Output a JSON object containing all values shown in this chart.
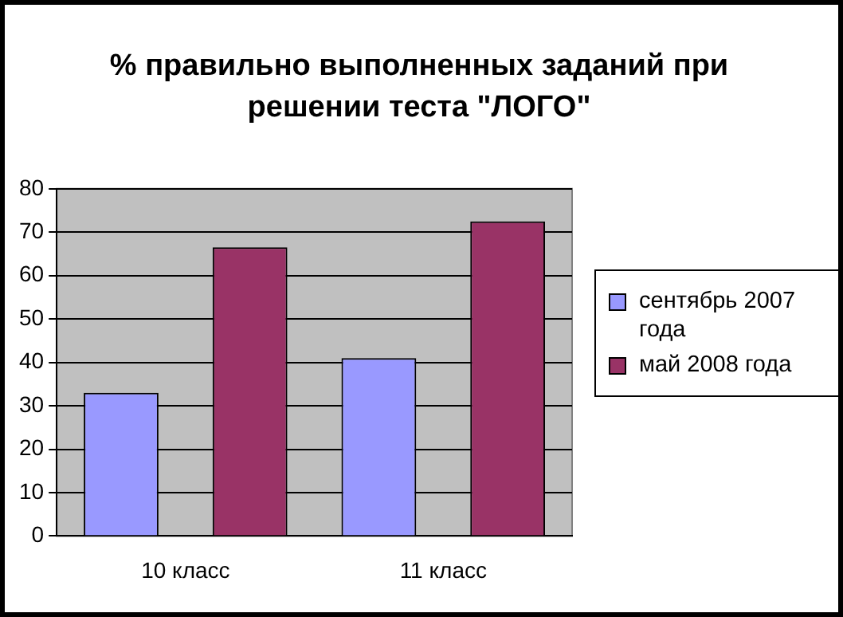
{
  "chart_data": {
    "type": "bar",
    "title": "% правильно выполненных заданий при решении теста \"ЛОГО\"",
    "categories": [
      "10 класс",
      "11 класс"
    ],
    "series": [
      {
        "name": "сентябрь 2007 года",
        "color": "#9999ff",
        "values": [
          33,
          41
        ]
      },
      {
        "name": "май 2008 года",
        "color": "#993366",
        "values": [
          66.5,
          72.5
        ]
      }
    ],
    "ylim": [
      0,
      80
    ],
    "yticks": [
      0,
      10,
      20,
      30,
      40,
      50,
      60,
      70,
      80
    ],
    "grid": "y",
    "legend": "right"
  }
}
